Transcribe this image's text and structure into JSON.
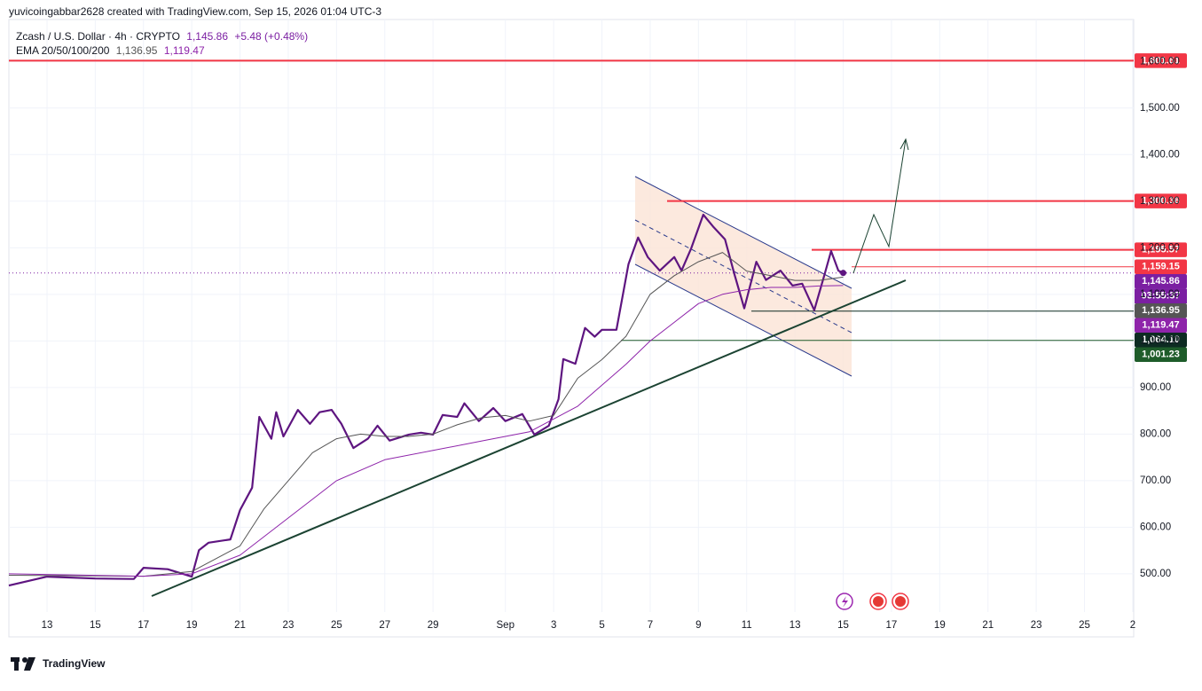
{
  "header": "yuvicoingabbar2628 created with TradingView.com, Sep 15, 2026 01:04 UTC-3",
  "legend": {
    "symbol": "Zcash / U.S. Dollar · 4h · CRYPTO",
    "last": "1,145.86",
    "change": "+5.48 (+0.48%)",
    "ema": "EMA 20/50/100/200",
    "ema_values": [
      "1,136.95",
      "1,119.47"
    ]
  },
  "brand": "TradingView",
  "chart_data": {
    "type": "line",
    "xlim": [
      11.42,
      58.04
    ],
    "xticks": [
      {
        "value": 13,
        "label": "13"
      },
      {
        "value": 15,
        "label": "15"
      },
      {
        "value": 17,
        "label": "17"
      },
      {
        "value": 19,
        "label": "19"
      },
      {
        "value": 21,
        "label": "21"
      },
      {
        "value": 23,
        "label": "23"
      },
      {
        "value": 25,
        "label": "25"
      },
      {
        "value": 27,
        "label": "27"
      },
      {
        "value": 29,
        "label": "29"
      },
      {
        "value": 32,
        "label": "Sep"
      },
      {
        "value": 34,
        "label": "3"
      },
      {
        "value": 36,
        "label": "5"
      },
      {
        "value": 38,
        "label": "7"
      },
      {
        "value": 40,
        "label": "9"
      },
      {
        "value": 42,
        "label": "11"
      },
      {
        "value": 44,
        "label": "13"
      },
      {
        "value": 46,
        "label": "15"
      },
      {
        "value": 48,
        "label": "17"
      },
      {
        "value": 50,
        "label": "19"
      },
      {
        "value": 52,
        "label": "21"
      },
      {
        "value": 54,
        "label": "23"
      },
      {
        "value": 56,
        "label": "25"
      },
      {
        "value": 58,
        "label": "2"
      }
    ],
    "ylim": [
      418,
      1690
    ],
    "yticks": [
      {
        "value": 500,
        "label": "500.00"
      },
      {
        "value": 600,
        "label": "600.00"
      },
      {
        "value": 700,
        "label": "700.00"
      },
      {
        "value": 800,
        "label": "800.00"
      },
      {
        "value": 900,
        "label": "900.00"
      },
      {
        "value": 1000,
        "label": "1,000.00"
      },
      {
        "value": 1100,
        "label": "1,100.00"
      },
      {
        "value": 1200,
        "label": "1,200.00"
      },
      {
        "value": 1300,
        "label": "1,300.00"
      },
      {
        "value": 1400,
        "label": "1,400.00"
      },
      {
        "value": 1500,
        "label": "1,500.00"
      },
      {
        "value": 1600,
        "label": "1,600.00"
      }
    ],
    "grid": true,
    "series": [
      {
        "name": "Zcash / U.S. Dollar · 4h · CRYPTO",
        "color": "#5e1580",
        "x": [
          11.42,
          13,
          15,
          16.6,
          17,
          18,
          19,
          19.3,
          19.7,
          20.6,
          21,
          21.5,
          21.8,
          22.3,
          22.5,
          22.8,
          23.4,
          23.9,
          24.3,
          24.8,
          25.2,
          25.7,
          26.3,
          26.7,
          27.2,
          28,
          28.5,
          29,
          29.4,
          30,
          30.3,
          30.9,
          31.5,
          32,
          32.7,
          33.2,
          33.8,
          34.2,
          34.4,
          34.9,
          35.3,
          35.7,
          36,
          36.6,
          37.1,
          37.5,
          37.9,
          38.4,
          39,
          39.3,
          39.7,
          40.2,
          40.6,
          41.1,
          41.5,
          41.9,
          42.4,
          42.8,
          43.4,
          43.9,
          44.3,
          44.8,
          45.2,
          45.5,
          45.8,
          46
        ],
        "values": [
          475,
          494,
          490,
          489,
          513,
          510,
          494,
          551,
          567,
          574,
          637,
          685,
          837,
          790,
          847,
          795,
          852,
          822,
          847,
          852,
          822,
          770,
          790,
          818,
          786,
          799,
          803,
          799,
          841,
          837,
          866,
          828,
          856,
          828,
          843,
          799,
          818,
          875,
          961,
          951,
          1028,
          1009,
          1024,
          1024,
          1165,
          1222,
          1180,
          1151,
          1180,
          1151,
          1199,
          1271,
          1246,
          1218,
          1142,
          1070,
          1170,
          1131,
          1151,
          1119,
          1123,
          1066,
          1138,
          1193,
          1151,
          1146
        ]
      },
      {
        "color": "#555555",
        "x": [
          11.42,
          17,
          19,
          21,
          22,
          23,
          24,
          25,
          26,
          27,
          28,
          29,
          30,
          31,
          32,
          33,
          34,
          35,
          36,
          37,
          38,
          39,
          40,
          41,
          42,
          43,
          44,
          45,
          46
        ],
        "values": [
          497,
          495,
          505,
          560,
          640,
          700,
          760,
          790,
          800,
          795,
          795,
          800,
          820,
          835,
          840,
          828,
          840,
          920,
          960,
          1010,
          1100,
          1140,
          1170,
          1190,
          1150,
          1140,
          1130,
          1130,
          1137
        ]
      },
      {
        "color": "#8e24aa",
        "x": [
          11.42,
          17,
          19,
          21,
          23,
          25,
          27,
          29,
          31,
          33,
          35,
          37,
          38,
          39,
          40,
          41,
          42,
          43,
          44,
          45,
          46
        ],
        "values": [
          500,
          495,
          500,
          540,
          620,
          700,
          745,
          765,
          785,
          805,
          860,
          950,
          1000,
          1040,
          1080,
          1100,
          1110,
          1115,
          1115,
          1118,
          1119
        ]
      }
    ],
    "price_labels": [
      {
        "value": 1601.61,
        "label": "1,601.61",
        "color": "#f23645"
      },
      {
        "value": 1300.36,
        "label": "1,300.36",
        "color": "#f23645"
      },
      {
        "value": 1195.57,
        "label": "1,195.57",
        "color": "#f23645"
      },
      {
        "value": 1159.15,
        "label": "1,159.15",
        "color": "#f23645"
      },
      {
        "value": 1145.86,
        "label": "1,145.86",
        "color": "#7b1fa2"
      },
      {
        "value": 1136.95,
        "label": "1,136.95",
        "color": "#555555"
      },
      {
        "value": 1119.47,
        "label": "1,119.47",
        "color": "#8e24aa"
      },
      {
        "value": 1064.1,
        "label": "1,064.10",
        "color": "#0d2b22"
      },
      {
        "value": 1001.23,
        "label": "1,001.23",
        "color": "#1e5c2a"
      }
    ],
    "countdown": "03:55:37"
  }
}
